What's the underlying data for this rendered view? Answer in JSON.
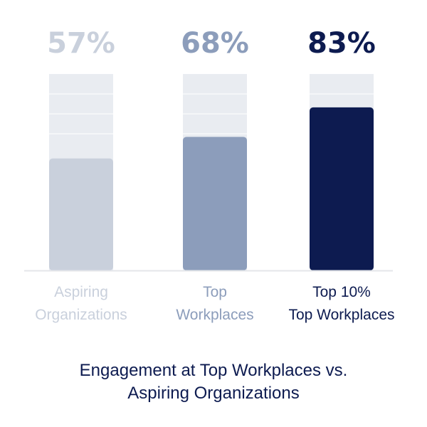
{
  "chart_data": {
    "type": "bar",
    "title_lines": [
      "Engagement at Top Workplaces vs.",
      "Aspiring Organizations"
    ],
    "categories": [
      [
        "Aspiring",
        "Organizations"
      ],
      [
        "Top",
        "Workplaces"
      ],
      [
        "Top 10%",
        "Top Workplaces"
      ]
    ],
    "values": [
      57,
      68,
      83
    ],
    "value_labels": [
      "57%",
      "68%",
      "83%"
    ],
    "ylim": [
      0,
      100
    ],
    "grid": true,
    "colors": {
      "bars": [
        "#c9d0dc",
        "#8c9dbb",
        "#0d1b50"
      ],
      "value_labels": [
        "#c9d0dc",
        "#8c9dbb",
        "#0d1b50"
      ],
      "category_labels": [
        "#c9d0dc",
        "#8c9dbb",
        "#0d1b50"
      ],
      "track": "#e9ecf1",
      "grid": "#ffffff",
      "baseline": "#e4e6ea",
      "title": "#0d1b50"
    }
  }
}
